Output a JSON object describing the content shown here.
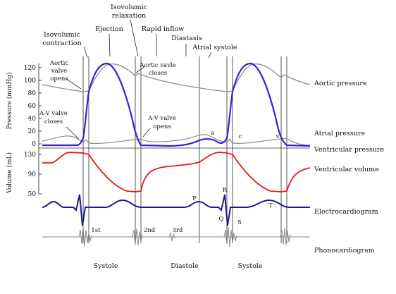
{
  "labels": {
    "isovolumic_relaxation": [
      "Isovolumic",
      "relaxation"
    ],
    "ejection": "Ejection",
    "rapid_inflow": "Rapid inflow",
    "isovolumic_contraction": [
      "Isovolumic",
      "contraction"
    ],
    "diastasis": "Diastasis",
    "atrial_systole": "Atrial systole",
    "aortic_valve_opens": [
      "Aortic",
      "valve",
      "opens"
    ],
    "aortic_valve_closes": [
      "Aortic vavle",
      "closes"
    ],
    "av_valve_closes": [
      "A-V valve",
      "closes"
    ],
    "av_valve_opens": [
      "A-V valve",
      "opens"
    ]
  },
  "axes": {
    "pressure_label": "Pressure (mmHg)",
    "pressure_ticks": [
      "120",
      "100",
      "80",
      "60",
      "40",
      "20",
      "0"
    ],
    "volume_label": "Volume (mL)",
    "volume_ticks": [
      "130",
      "90",
      "50"
    ]
  },
  "wave_letters": {
    "a": "a",
    "c": "c",
    "v": "v"
  },
  "ecg_letters": {
    "P": "P",
    "Q": "Q",
    "R": "R",
    "S": "S",
    "T": "T"
  },
  "heart_sounds": {
    "first": "1st",
    "second": "2nd",
    "third": "3rd"
  },
  "trace_labels": {
    "aortic_pressure": "Aortic pressure",
    "atrial_pressure": "Atrial pressure",
    "ventricular_pressure": "Ventricular pressure",
    "ventricular_volume": "Ventricular volume",
    "electrocardiogram": "Electrocardiogram",
    "phonocardiogram": "Phonocardiogram"
  },
  "phases": {
    "systole_1": "Systole",
    "diastole": "Diastole",
    "systole_2": "Systole"
  },
  "colors": {
    "aortic": "#8c8c8c",
    "atrial": "#8c8c8c",
    "ventricular_pressure": "#3b1fd9",
    "ventricular_volume": "#e81818",
    "ecg": "#1f1a8c",
    "phono": "#8a8a8a",
    "grid": "#444444"
  }
}
